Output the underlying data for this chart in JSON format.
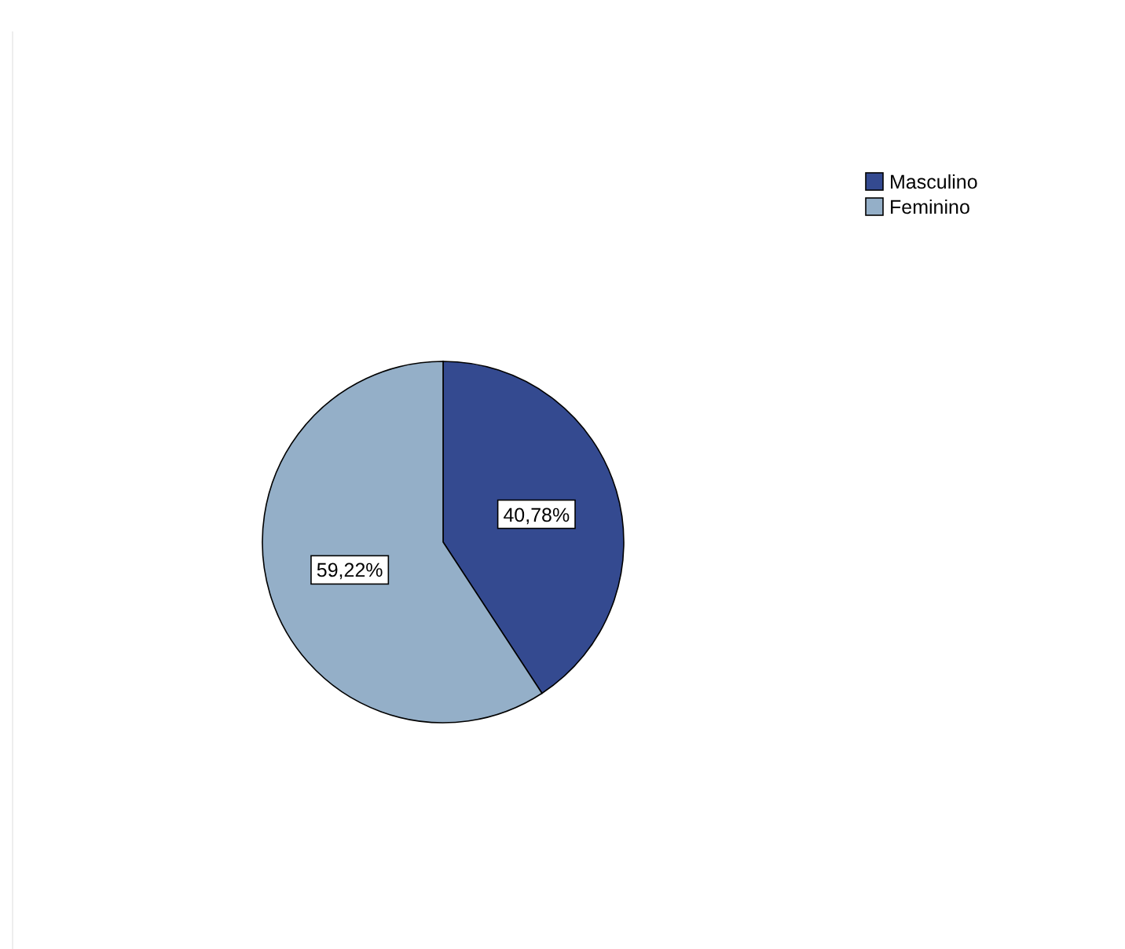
{
  "chart_data": {
    "type": "pie",
    "categories": [
      "Masculino",
      "Feminino"
    ],
    "values": [
      40.78,
      59.22
    ],
    "colors": [
      "#344a90",
      "#94afc8"
    ],
    "value_labels": [
      "40,78%",
      "59,22%"
    ],
    "legend": "top right"
  }
}
